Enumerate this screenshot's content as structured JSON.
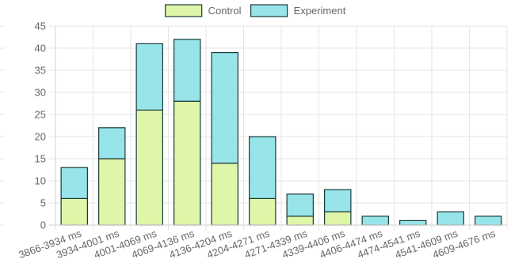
{
  "chart_data": {
    "type": "bar",
    "stacked": true,
    "categories": [
      "3866-3934 ms",
      "3934-4001 ms",
      "4001-4069 ms",
      "4069-4136 ms",
      "4136-4204 ms",
      "4204-4271 ms",
      "4271-4339 ms",
      "4339-4406 ms",
      "4406-4474 ms",
      "4474-4541 ms",
      "4541-4609 ms",
      "4609-4676 ms"
    ],
    "series": [
      {
        "name": "Control",
        "color": "#dff5a8",
        "values": [
          6,
          15,
          26,
          28,
          14,
          6,
          2,
          3,
          0,
          0,
          0,
          0
        ]
      },
      {
        "name": "Experiment",
        "color": "#97e4e9",
        "values": [
          7,
          7,
          15,
          14,
          25,
          14,
          5,
          5,
          2,
          1,
          3,
          2
        ]
      }
    ],
    "ylim": [
      0,
      45
    ],
    "yticks": [
      0,
      5,
      10,
      15,
      20,
      25,
      30,
      35,
      40,
      45
    ],
    "grid": true,
    "legend_position": "top"
  }
}
